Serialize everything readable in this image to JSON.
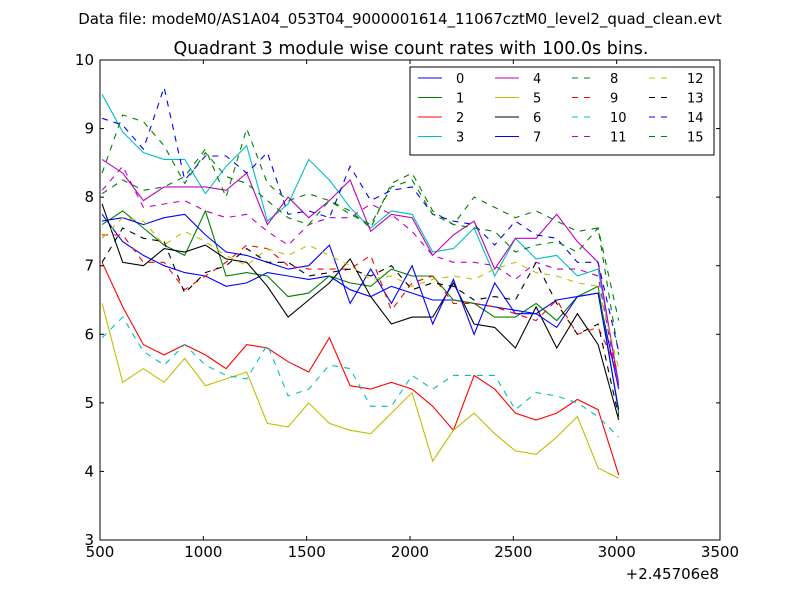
{
  "page": {
    "suptitle": "Data file: modeM0/AS1A04_053T04_9000001614_11067cztM0_level2_quad_clean.evt"
  },
  "chart_data": {
    "type": "line",
    "title": "Quadrant 3 module wise count rates with 100.0s bins.",
    "xlabel": "",
    "ylabel": "",
    "x_offset_label": "+2.45706e8",
    "xlim": [
      500,
      3500
    ],
    "ylim": [
      3,
      10
    ],
    "xticks": [
      500,
      1000,
      1500,
      2000,
      2500,
      3000,
      3500
    ],
    "yticks": [
      3,
      4,
      5,
      6,
      7,
      8,
      9,
      10
    ],
    "grid": false,
    "legend_position": "top-right",
    "legend_columns": 4,
    "x": [
      510,
      610,
      710,
      810,
      910,
      1010,
      1110,
      1210,
      1310,
      1410,
      1510,
      1610,
      1710,
      1810,
      1910,
      2010,
      2110,
      2210,
      2310,
      2410,
      2510,
      2610,
      2710,
      2810,
      2910,
      3010
    ],
    "series": [
      {
        "name": "0",
        "color": "#0000ff",
        "dash": "solid",
        "values": [
          7.75,
          7.35,
          7.15,
          7.0,
          6.9,
          6.85,
          6.7,
          6.75,
          6.9,
          6.85,
          6.8,
          6.85,
          6.65,
          6.55,
          6.7,
          6.6,
          6.5,
          6.5,
          6.45,
          6.4,
          6.35,
          6.3,
          6.5,
          6.55,
          6.6,
          5.2
        ]
      },
      {
        "name": "1",
        "color": "#008000",
        "dash": "solid",
        "values": [
          7.6,
          7.8,
          7.55,
          7.3,
          7.15,
          7.8,
          6.85,
          6.9,
          6.85,
          6.55,
          6.6,
          6.85,
          6.75,
          6.7,
          6.95,
          6.85,
          6.85,
          6.5,
          6.45,
          6.25,
          6.25,
          6.45,
          6.2,
          6.55,
          6.7,
          4.85
        ]
      },
      {
        "name": "2",
        "color": "#ff0000",
        "dash": "solid",
        "values": [
          7.05,
          6.4,
          5.85,
          5.7,
          5.85,
          5.7,
          5.5,
          5.85,
          5.8,
          5.6,
          5.45,
          5.95,
          5.25,
          5.2,
          5.3,
          5.2,
          4.95,
          4.6,
          5.4,
          5.2,
          4.85,
          4.75,
          4.85,
          5.05,
          4.9,
          3.95
        ]
      },
      {
        "name": "3",
        "color": "#00bfbf",
        "dash": "solid",
        "values": [
          9.5,
          8.95,
          8.65,
          8.55,
          8.55,
          8.05,
          8.45,
          8.75,
          7.65,
          7.9,
          8.55,
          8.25,
          7.85,
          7.55,
          7.8,
          7.75,
          7.2,
          7.25,
          7.55,
          6.85,
          7.4,
          7.1,
          7.15,
          6.85,
          6.95,
          5.3
        ]
      },
      {
        "name": "4",
        "color": "#bf00bf",
        "dash": "solid",
        "values": [
          8.55,
          8.35,
          7.95,
          8.15,
          8.15,
          8.15,
          8.1,
          8.35,
          7.6,
          8.0,
          7.7,
          7.95,
          8.25,
          7.5,
          7.75,
          7.7,
          7.15,
          7.45,
          7.65,
          6.95,
          7.4,
          7.4,
          7.75,
          7.35,
          7.05,
          5.25
        ]
      },
      {
        "name": "5",
        "color": "#bfbf00",
        "dash": "solid",
        "values": [
          6.45,
          5.3,
          5.5,
          5.3,
          5.65,
          5.25,
          5.35,
          5.45,
          4.7,
          4.65,
          5.0,
          4.7,
          4.6,
          4.55,
          4.85,
          5.15,
          4.15,
          4.6,
          4.85,
          4.55,
          4.3,
          4.25,
          4.5,
          4.8,
          4.05,
          3.9
        ]
      },
      {
        "name": "6",
        "color": "#000000",
        "dash": "solid",
        "values": [
          7.9,
          7.05,
          7.0,
          7.25,
          7.2,
          7.3,
          7.1,
          7.05,
          6.7,
          6.25,
          6.5,
          6.75,
          7.1,
          6.55,
          6.15,
          6.25,
          6.25,
          6.75,
          6.15,
          6.1,
          5.8,
          6.4,
          5.8,
          6.3,
          5.85,
          4.75
        ]
      },
      {
        "name": "7",
        "color": "#0000ff",
        "dash": "solid",
        "values": [
          7.65,
          7.7,
          7.6,
          7.7,
          7.75,
          7.45,
          7.2,
          7.15,
          7.05,
          6.95,
          7.0,
          7.3,
          6.45,
          6.95,
          6.45,
          7.0,
          6.15,
          6.8,
          6.0,
          6.75,
          6.3,
          6.3,
          6.1,
          6.55,
          6.6,
          4.9
        ]
      },
      {
        "name": "8",
        "color": "#008000",
        "dash": "dashed",
        "values": [
          8.05,
          8.25,
          8.1,
          8.15,
          8.3,
          8.7,
          8.0,
          9.0,
          8.2,
          7.95,
          8.05,
          7.95,
          7.8,
          7.55,
          8.2,
          8.35,
          7.8,
          7.6,
          8.0,
          7.85,
          7.7,
          7.8,
          7.65,
          7.5,
          7.55,
          5.7
        ]
      },
      {
        "name": "9",
        "color": "#ff0000",
        "dash": "dashed",
        "values": [
          7.45,
          7.45,
          7.05,
          7.05,
          6.65,
          6.85,
          7.05,
          7.3,
          7.25,
          7.0,
          6.95,
          6.95,
          6.95,
          7.15,
          6.35,
          6.75,
          6.85,
          6.45,
          6.45,
          6.4,
          6.3,
          6.2,
          6.5,
          6.0,
          6.1,
          5.45
        ]
      },
      {
        "name": "10",
        "color": "#00bfbf",
        "dash": "dashed",
        "values": [
          5.95,
          6.25,
          5.75,
          5.55,
          5.85,
          5.55,
          5.4,
          5.35,
          5.85,
          5.1,
          5.2,
          5.55,
          5.5,
          4.95,
          4.95,
          5.4,
          5.2,
          5.4,
          5.4,
          5.4,
          4.9,
          5.15,
          5.1,
          5.0,
          4.8,
          4.5
        ]
      },
      {
        "name": "11",
        "color": "#bf00bf",
        "dash": "dashed",
        "values": [
          8.1,
          8.45,
          7.85,
          7.9,
          7.95,
          7.8,
          7.7,
          7.75,
          7.5,
          7.3,
          7.6,
          7.7,
          7.7,
          7.9,
          7.75,
          7.5,
          7.15,
          7.05,
          7.05,
          7.0,
          6.8,
          7.05,
          6.95,
          6.95,
          6.85,
          5.2
        ]
      },
      {
        "name": "12",
        "color": "#bfbf00",
        "dash": "dashed",
        "values": [
          7.4,
          7.7,
          7.65,
          7.3,
          7.5,
          7.35,
          7.15,
          7.0,
          7.25,
          7.15,
          7.3,
          7.15,
          7.0,
          6.8,
          6.85,
          6.7,
          6.8,
          6.85,
          6.8,
          6.95,
          7.05,
          6.9,
          6.85,
          6.75,
          6.7,
          5.5
        ]
      },
      {
        "name": "13",
        "color": "#000000",
        "dash": "dashed",
        "values": [
          7.05,
          7.55,
          7.4,
          7.35,
          6.6,
          6.9,
          7.0,
          7.25,
          7.05,
          7.05,
          6.85,
          6.9,
          6.95,
          6.85,
          7.0,
          6.65,
          6.75,
          6.7,
          6.5,
          6.55,
          6.5,
          7.05,
          6.45,
          6.0,
          6.15,
          4.8
        ]
      },
      {
        "name": "14",
        "color": "#0000ff",
        "dash": "dashed",
        "values": [
          9.15,
          9.05,
          8.7,
          9.6,
          8.25,
          8.6,
          8.6,
          8.35,
          8.65,
          7.75,
          7.8,
          7.7,
          8.45,
          7.95,
          8.1,
          8.15,
          7.75,
          7.65,
          7.6,
          7.3,
          7.65,
          7.45,
          7.4,
          7.05,
          7.05,
          5.75
        ]
      },
      {
        "name": "15",
        "color": "#008000",
        "dash": "dashed",
        "values": [
          8.35,
          9.2,
          9.1,
          8.75,
          8.2,
          8.65,
          8.3,
          8.2,
          7.95,
          7.7,
          7.6,
          7.95,
          7.75,
          7.6,
          8.15,
          8.25,
          7.75,
          7.6,
          7.55,
          7.5,
          7.2,
          7.3,
          7.35,
          7.2,
          7.55,
          6.2
        ]
      }
    ]
  }
}
